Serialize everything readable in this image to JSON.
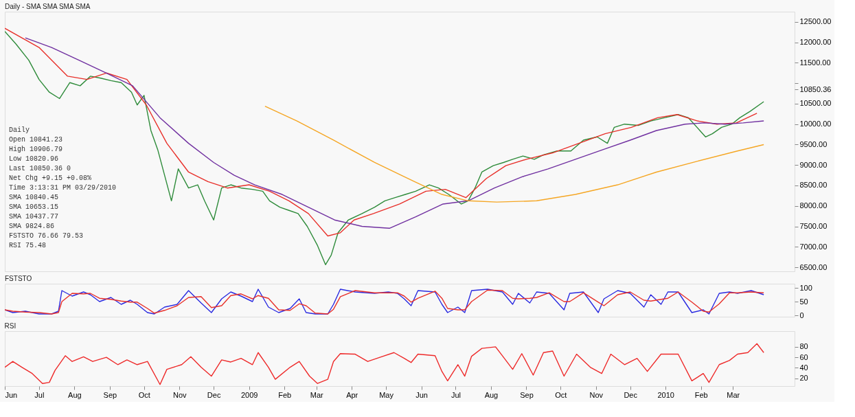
{
  "chart_data": [
    {
      "type": "line",
      "title": "Daily - SMA SMA SMA SMA",
      "tick_labels": "y",
      "xlim": [
        "2008-06-01",
        "2010-04-24"
      ],
      "ylim": [
        6400,
        12750
      ],
      "yticks": [
        {
          "value": 6500,
          "label": "6500.00"
        },
        {
          "value": 7000,
          "label": "7000.00"
        },
        {
          "value": 7500,
          "label": "7500.00"
        },
        {
          "value": 8000,
          "label": "8000.00"
        },
        {
          "value": 8500,
          "label": "8500.00"
        },
        {
          "value": 9000,
          "label": "9000.00"
        },
        {
          "value": 9500,
          "label": "9500.00"
        },
        {
          "value": 10000,
          "label": "10000.00"
        },
        {
          "value": 10500,
          "label": "10500.00"
        },
        {
          "value": 10850.36,
          "label": "10850.36"
        },
        {
          "value": 11000,
          "label": null
        },
        {
          "value": 11500,
          "label": "11500.00"
        },
        {
          "value": 12000,
          "label": "12000.00"
        },
        {
          "value": 12500,
          "label": "12500.00"
        }
      ],
      "series": [
        {
          "color": "#2e8b3a",
          "x": [
            "2008-06-01",
            "2008-06-11",
            "2008-06-22",
            "2008-07-01",
            "2008-07-10",
            "2008-07-19",
            "2008-07-28",
            "2008-08-06",
            "2008-08-15",
            "2008-08-24",
            "2008-09-02",
            "2008-09-11",
            "2008-09-20",
            "2008-09-25",
            "2008-10-01",
            "2008-10-07",
            "2008-10-13",
            "2008-10-19",
            "2008-10-25",
            "2008-10-31",
            "2008-11-09",
            "2008-11-17",
            "2008-11-23",
            "2008-12-01",
            "2008-12-08",
            "2008-12-16",
            "2008-12-25",
            "2009-01-04",
            "2009-01-13",
            "2009-01-19",
            "2009-01-28",
            "2009-02-05",
            "2009-02-13",
            "2009-02-21",
            "2009-03-02",
            "2009-03-09",
            "2009-03-14",
            "2009-03-20",
            "2009-03-29",
            "2009-04-10",
            "2009-04-21",
            "2009-04-30",
            "2009-05-09",
            "2009-05-18",
            "2009-05-27",
            "2009-06-08",
            "2009-06-16",
            "2009-06-25",
            "2009-07-06",
            "2009-07-12",
            "2009-07-18",
            "2009-07-24",
            "2009-08-03",
            "2009-08-12",
            "2009-08-20",
            "2009-08-29",
            "2009-09-08",
            "2009-09-16",
            "2009-09-28",
            "2009-10-10",
            "2009-10-21",
            "2009-11-02",
            "2009-11-11",
            "2009-11-17",
            "2009-11-26",
            "2009-12-08",
            "2009-12-19",
            "2009-12-31",
            "2010-01-12",
            "2010-01-21",
            "2010-01-31",
            "2010-02-05",
            "2010-02-11",
            "2010-02-19",
            "2010-02-28",
            "2010-03-07",
            "2010-03-16",
            "2010-03-28"
          ],
          "values": [
            12266,
            11953,
            11563,
            11094,
            10781,
            10625,
            11016,
            10938,
            11172,
            11125,
            11063,
            11016,
            10781,
            10469,
            10703,
            9844,
            9375,
            8750,
            8125,
            8906,
            8438,
            8516,
            8125,
            7656,
            8438,
            8516,
            8438,
            8406,
            8359,
            8125,
            7969,
            7891,
            7813,
            7500,
            7031,
            6563,
            6797,
            7344,
            7656,
            7813,
            7969,
            8125,
            8203,
            8281,
            8359,
            8516,
            8438,
            8281,
            8047,
            8125,
            8438,
            8828,
            8984,
            9063,
            9141,
            9219,
            9141,
            9250,
            9344,
            9344,
            9609,
            9688,
            9531,
            9922,
            10000,
            9969,
            10078,
            10156,
            10234,
            10156,
            9844,
            9688,
            9766,
            9922,
            10000,
            10156,
            10313,
            10550
          ]
        },
        {
          "color": "#e8302a",
          "x": [
            "2008-06-01",
            "2008-07-01",
            "2008-07-26",
            "2008-08-12",
            "2008-08-29",
            "2008-09-16",
            "2008-10-03",
            "2008-10-21",
            "2008-11-09",
            "2008-11-26",
            "2008-12-13",
            "2009-01-01",
            "2009-01-19",
            "2009-02-05",
            "2009-02-22",
            "2009-03-11",
            "2009-03-22",
            "2009-04-03",
            "2009-04-20",
            "2009-05-13",
            "2009-06-05",
            "2009-06-22",
            "2009-07-10",
            "2009-07-28",
            "2009-08-14",
            "2009-09-01",
            "2009-09-24",
            "2009-10-17",
            "2009-11-09",
            "2009-12-02",
            "2009-12-25",
            "2010-01-11",
            "2010-01-29",
            "2010-02-15",
            "2010-03-04",
            "2010-03-22"
          ],
          "values": [
            12344,
            11875,
            11172,
            11094,
            11250,
            11094,
            10469,
            9531,
            8828,
            8594,
            8438,
            8516,
            8359,
            8125,
            7813,
            7266,
            7344,
            7656,
            7813,
            8047,
            8359,
            8406,
            8203,
            8672,
            8984,
            9141,
            9297,
            9531,
            9766,
            9922,
            10156,
            10234,
            10078,
            10000,
            10031,
            10266
          ]
        },
        {
          "color": "#7030a0",
          "x": [
            "2008-06-19",
            "2008-07-12",
            "2008-08-05",
            "2008-08-29",
            "2008-09-21",
            "2008-10-15",
            "2008-11-09",
            "2008-12-01",
            "2008-12-19",
            "2009-01-06",
            "2009-01-30",
            "2009-02-22",
            "2009-03-17",
            "2009-04-10",
            "2009-05-04",
            "2009-05-27",
            "2009-06-20",
            "2009-07-12",
            "2009-08-04",
            "2009-08-29",
            "2009-09-20",
            "2009-10-14",
            "2009-11-07",
            "2009-12-01",
            "2009-12-24",
            "2010-01-18",
            "2010-02-04",
            "2010-02-22",
            "2010-03-10",
            "2010-03-28"
          ],
          "values": [
            12109,
            11875,
            11563,
            11250,
            10938,
            10156,
            9531,
            9063,
            8750,
            8516,
            8281,
            7969,
            7656,
            7500,
            7453,
            7734,
            8047,
            8125,
            8438,
            8719,
            8906,
            9141,
            9375,
            9609,
            9844,
            10000,
            10031,
            10000,
            10031,
            10078
          ]
        },
        {
          "color": "#f5a623",
          "x": [
            "2009-01-15",
            "2009-02-12",
            "2009-03-16",
            "2009-04-21",
            "2009-05-26",
            "2009-06-19",
            "2009-07-12",
            "2009-08-06",
            "2009-09-10",
            "2009-10-14",
            "2009-11-20",
            "2009-12-24",
            "2010-01-29",
            "2010-03-05",
            "2010-03-28"
          ],
          "values": [
            10438,
            10078,
            9609,
            9063,
            8594,
            8281,
            8125,
            8094,
            8125,
            8281,
            8516,
            8828,
            9094,
            9344,
            9500
          ]
        }
      ],
      "annotations": [
        "Daily",
        "Open      10841.23",
        "High      10906.79",
        "Low       10820.96",
        "Last      10850.36     0",
        "Net Chg   +9.15        +0.08%",
        "Time      3:13:31 PM   03/29/2010",
        "SMA       10840.45",
        "SMA       10653.15",
        "SMA       10437.77",
        "SMA       9824.86",
        "FSTSTO    76.66        79.53",
        "RSI       75.48"
      ]
    },
    {
      "type": "line",
      "title": "FSTSTO",
      "tick_labels": "y",
      "xlim": [
        "2008-06-01",
        "2010-04-24"
      ],
      "ylim": [
        -5,
        115
      ],
      "yticks": [
        0,
        50,
        100
      ],
      "series": [
        {
          "color": "#2a2ae0",
          "x": [
            "2008-06-01",
            "2008-06-08",
            "2008-06-19",
            "2008-07-01",
            "2008-07-12",
            "2008-07-18",
            "2008-07-21",
            "2008-07-30",
            "2008-08-09",
            "2008-08-15",
            "2008-08-23",
            "2008-09-02",
            "2008-09-11",
            "2008-09-19",
            "2008-09-25",
            "2008-10-04",
            "2008-10-10",
            "2008-10-19",
            "2008-10-30",
            "2008-11-09",
            "2008-11-20",
            "2008-11-29",
            "2008-12-08",
            "2008-12-16",
            "2008-12-25",
            "2009-01-04",
            "2009-01-09",
            "2009-01-18",
            "2009-01-27",
            "2009-02-06",
            "2009-02-14",
            "2009-02-20",
            "2009-02-28",
            "2009-03-11",
            "2009-03-16",
            "2009-03-22",
            "2009-04-04",
            "2009-04-21",
            "2009-05-03",
            "2009-05-11",
            "2009-05-17",
            "2009-05-23",
            "2009-05-29",
            "2009-06-13",
            "2009-06-19",
            "2009-06-24",
            "2009-07-03",
            "2009-07-09",
            "2009-07-15",
            "2009-07-29",
            "2009-08-11",
            "2009-08-20",
            "2009-08-25",
            "2009-09-04",
            "2009-09-10",
            "2009-09-21",
            "2009-10-04",
            "2009-10-09",
            "2009-10-21",
            "2009-11-03",
            "2009-11-08",
            "2009-11-20",
            "2009-12-01",
            "2009-12-13",
            "2009-12-19",
            "2009-12-28",
            "2010-01-03",
            "2010-01-12",
            "2010-01-24",
            "2010-02-03",
            "2010-02-08",
            "2010-02-17",
            "2010-02-26",
            "2010-03-05",
            "2010-03-17",
            "2010-03-28"
          ],
          "values": [
            20,
            10,
            15,
            5,
            5,
            15,
            90,
            70,
            85,
            75,
            50,
            65,
            40,
            55,
            40,
            10,
            5,
            30,
            40,
            90,
            45,
            10,
            60,
            85,
            70,
            50,
            95,
            30,
            10,
            25,
            60,
            10,
            5,
            5,
            40,
            95,
            85,
            80,
            85,
            80,
            60,
            35,
            90,
            85,
            40,
            10,
            30,
            10,
            90,
            95,
            85,
            40,
            80,
            45,
            85,
            80,
            20,
            80,
            85,
            10,
            60,
            90,
            80,
            30,
            75,
            40,
            85,
            85,
            10,
            20,
            5,
            80,
            85,
            80,
            90,
            75
          ]
        },
        {
          "color": "#e8302a",
          "x": [
            "2008-06-01",
            "2008-06-08",
            "2008-06-19",
            "2008-07-01",
            "2008-07-12",
            "2008-07-18",
            "2008-07-21",
            "2008-07-30",
            "2008-08-09",
            "2008-08-15",
            "2008-08-23",
            "2008-09-02",
            "2008-09-11",
            "2008-09-19",
            "2008-09-25",
            "2008-10-04",
            "2008-10-10",
            "2008-10-19",
            "2008-10-30",
            "2008-11-09",
            "2008-11-20",
            "2008-11-29",
            "2008-12-08",
            "2008-12-16",
            "2008-12-25",
            "2009-01-04",
            "2009-01-09",
            "2009-01-18",
            "2009-01-27",
            "2009-02-06",
            "2009-02-14",
            "2009-02-20",
            "2009-02-28",
            "2009-03-11",
            "2009-03-16",
            "2009-03-22",
            "2009-04-04",
            "2009-04-21",
            "2009-05-03",
            "2009-05-11",
            "2009-05-17",
            "2009-05-23",
            "2009-05-29",
            "2009-06-13",
            "2009-06-19",
            "2009-06-24",
            "2009-07-03",
            "2009-07-09",
            "2009-07-15",
            "2009-07-29",
            "2009-08-11",
            "2009-08-20",
            "2009-08-25",
            "2009-09-04",
            "2009-09-10",
            "2009-09-21",
            "2009-10-04",
            "2009-10-09",
            "2009-10-21",
            "2009-11-03",
            "2009-11-08",
            "2009-11-20",
            "2009-12-01",
            "2009-12-13",
            "2009-12-19",
            "2009-12-28",
            "2010-01-03",
            "2010-01-12",
            "2010-01-24",
            "2010-02-03",
            "2010-02-08",
            "2010-02-17",
            "2010-02-26",
            "2010-03-05",
            "2010-03-17",
            "2010-03-28"
          ],
          "values": [
            20,
            15,
            12,
            10,
            5,
            10,
            50,
            80,
            78,
            80,
            62,
            58,
            52,
            48,
            48,
            25,
            8,
            18,
            35,
            65,
            68,
            28,
            35,
            72,
            78,
            60,
            72,
            62,
            20,
            18,
            42,
            35,
            8,
            5,
            22,
            68,
            90,
            82,
            82,
            82,
            70,
            48,
            62,
            88,
            62,
            25,
            20,
            20,
            50,
            92,
            90,
            62,
            60,
            62,
            65,
            82,
            50,
            50,
            82,
            48,
            35,
            75,
            85,
            55,
            52,
            58,
            62,
            85,
            48,
            15,
            12,
            42,
            82,
            82,
            85,
            82
          ]
        }
      ]
    },
    {
      "type": "line",
      "title": "RSI",
      "xlim": [
        "2008-06-01",
        "2010-04-24"
      ],
      "ylim": [
        5,
        110
      ],
      "yticks": [
        20,
        40,
        60,
        80
      ],
      "xticks": [
        {
          "value": "2008-06-01",
          "label": "Jun"
        },
        {
          "value": "2008-07-01",
          "label": "Jul"
        },
        {
          "value": "2008-08-01",
          "label": "Aug"
        },
        {
          "value": "2008-09-01",
          "label": "Sep"
        },
        {
          "value": "2008-10-01",
          "label": "Oct"
        },
        {
          "value": "2008-11-01",
          "label": "Nov"
        },
        {
          "value": "2008-12-01",
          "label": "Dec"
        },
        {
          "value": "2009-01-01",
          "label": "2009"
        },
        {
          "value": "2009-02-01",
          "label": "Feb"
        },
        {
          "value": "2009-03-01",
          "label": "Mar"
        },
        {
          "value": "2009-04-01",
          "label": "Apr"
        },
        {
          "value": "2009-05-01",
          "label": "May"
        },
        {
          "value": "2009-06-01",
          "label": "Jun"
        },
        {
          "value": "2009-07-01",
          "label": "Jul"
        },
        {
          "value": "2009-08-01",
          "label": "Aug"
        },
        {
          "value": "2009-09-01",
          "label": "Sep"
        },
        {
          "value": "2009-10-01",
          "label": "Oct"
        },
        {
          "value": "2009-11-01",
          "label": "Nov"
        },
        {
          "value": "2009-12-01",
          "label": "Dec"
        },
        {
          "value": "2010-01-01",
          "label": "2010"
        },
        {
          "value": "2010-02-01",
          "label": "Feb"
        },
        {
          "value": "2010-03-01",
          "label": "Mar"
        }
      ],
      "series": [
        {
          "color": "#ee2a2a",
          "x": [
            "2008-06-01",
            "2008-06-08",
            "2008-06-16",
            "2008-06-25",
            "2008-07-04",
            "2008-07-10",
            "2008-07-15",
            "2008-07-24",
            "2008-07-30",
            "2008-08-09",
            "2008-08-17",
            "2008-08-29",
            "2008-09-08",
            "2008-09-16",
            "2008-09-25",
            "2008-10-04",
            "2008-10-15",
            "2008-10-21",
            "2008-11-03",
            "2008-11-11",
            "2008-11-20",
            "2008-11-29",
            "2008-12-08",
            "2008-12-16",
            "2008-12-25",
            "2009-01-04",
            "2009-01-09",
            "2009-01-18",
            "2009-01-24",
            "2009-02-06",
            "2009-02-14",
            "2009-02-23",
            "2009-03-02",
            "2009-03-11",
            "2009-03-16",
            "2009-03-22",
            "2009-04-04",
            "2009-04-15",
            "2009-04-27",
            "2009-05-08",
            "2009-05-17",
            "2009-05-23",
            "2009-05-29",
            "2009-06-13",
            "2009-06-19",
            "2009-06-24",
            "2009-07-03",
            "2009-07-09",
            "2009-07-15",
            "2009-07-24",
            "2009-08-05",
            "2009-08-11",
            "2009-08-20",
            "2009-08-28",
            "2009-09-07",
            "2009-09-16",
            "2009-09-24",
            "2009-10-04",
            "2009-10-15",
            "2009-10-27",
            "2009-11-06",
            "2009-11-14",
            "2009-11-26",
            "2009-12-07",
            "2009-12-16",
            "2009-12-28",
            "2010-01-12",
            "2010-01-24",
            "2010-02-03",
            "2010-02-08",
            "2010-02-17",
            "2010-02-26",
            "2010-03-05",
            "2010-03-14",
            "2010-03-22",
            "2010-03-28"
          ],
          "values": [
            41,
            52,
            41,
            29,
            10,
            12,
            35,
            63,
            52,
            61,
            52,
            60,
            46,
            55,
            46,
            52,
            8,
            37,
            46,
            61,
            41,
            24,
            55,
            51,
            58,
            46,
            69,
            41,
            18,
            41,
            52,
            24,
            10,
            18,
            52,
            67,
            66,
            52,
            61,
            69,
            58,
            50,
            66,
            63,
            33,
            15,
            46,
            24,
            62,
            77,
            80,
            63,
            37,
            67,
            26,
            69,
            72,
            24,
            66,
            41,
            29,
            66,
            46,
            58,
            33,
            66,
            66,
            15,
            29,
            12,
            46,
            54,
            66,
            69,
            86,
            69
          ]
        }
      ]
    }
  ]
}
